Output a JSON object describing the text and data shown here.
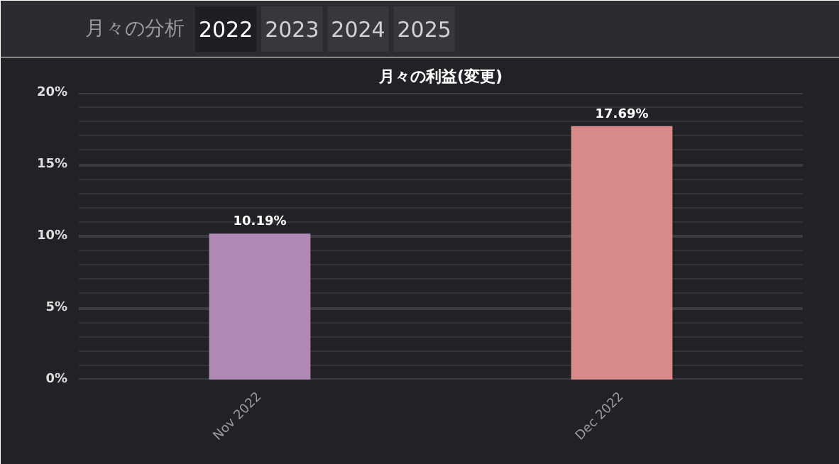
{
  "chart_data": {
    "type": "bar",
    "title": "月々の利益(変更)",
    "annotations": [
      "月々の分析",
      "2022",
      "2023",
      "2024",
      "2025"
    ],
    "categories": [
      "Nov 2022",
      "Dec 2022"
    ],
    "values": [
      10.19,
      17.69
    ],
    "colors": [
      "#b08ab5",
      "#d88a8a"
    ],
    "value_labels": [
      "10.19%",
      "17.69%"
    ],
    "ylim": [
      0,
      20
    ],
    "yticks": [
      {
        "value": 0,
        "label": "0%"
      },
      {
        "value": 1,
        "label": null
      },
      {
        "value": 2,
        "label": null
      },
      {
        "value": 3,
        "label": null
      },
      {
        "value": 4,
        "label": null
      },
      {
        "value": 5,
        "label": "5%"
      },
      {
        "value": 6,
        "label": null
      },
      {
        "value": 7,
        "label": null
      },
      {
        "value": 8,
        "label": null
      },
      {
        "value": 9,
        "label": null
      },
      {
        "value": 10,
        "label": "10%"
      },
      {
        "value": 11,
        "label": null
      },
      {
        "value": 12,
        "label": null
      },
      {
        "value": 13,
        "label": null
      },
      {
        "value": 14,
        "label": null
      },
      {
        "value": 15,
        "label": "15%"
      },
      {
        "value": 16,
        "label": null
      },
      {
        "value": 17,
        "label": null
      },
      {
        "value": 18,
        "label": null
      },
      {
        "value": 19,
        "label": null
      },
      {
        "value": 20,
        "label": "20%"
      }
    ],
    "grid": "y"
  }
}
